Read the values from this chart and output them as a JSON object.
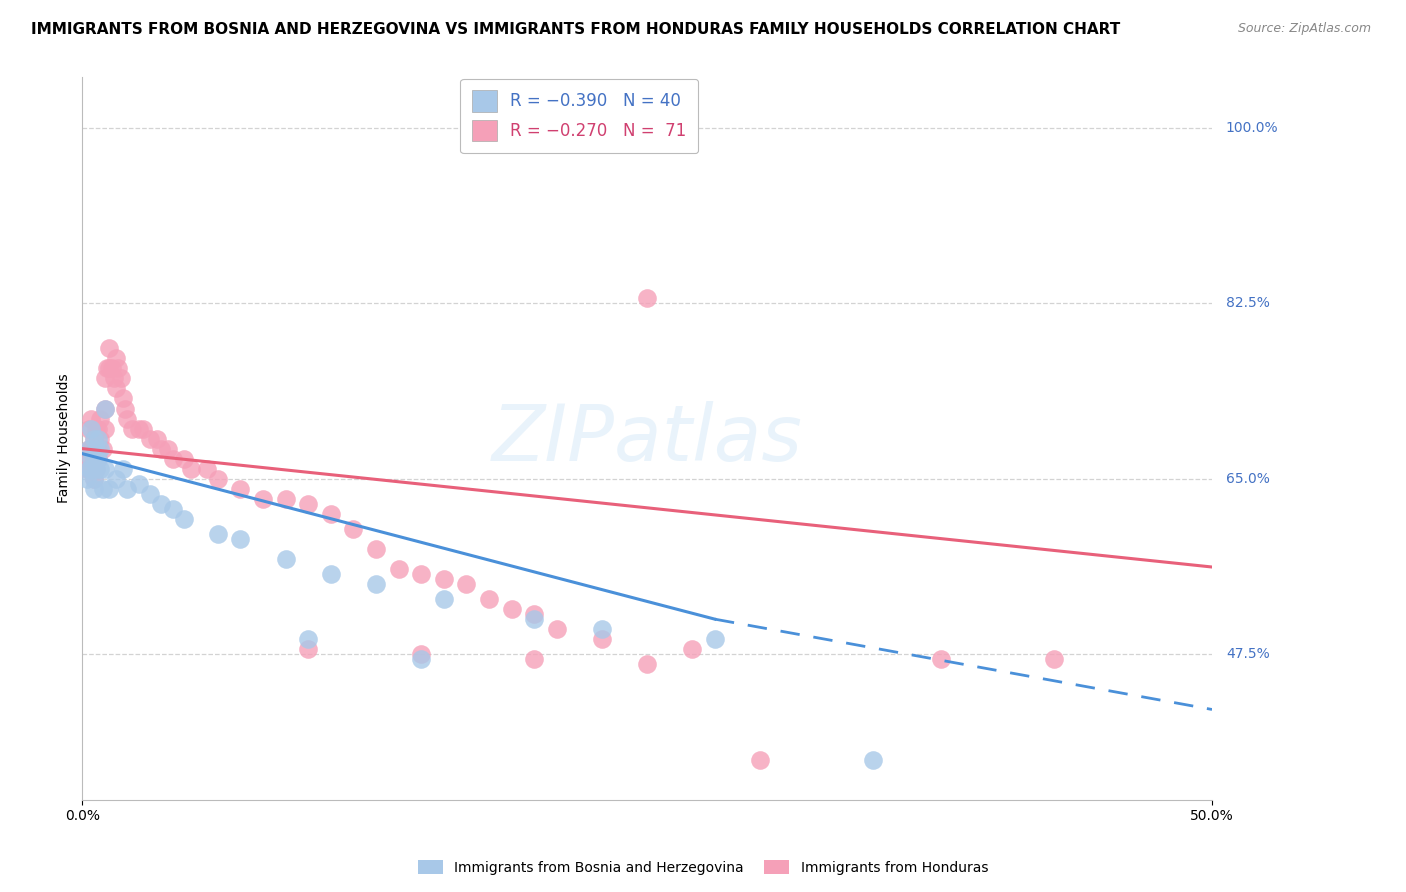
{
  "title": "IMMIGRANTS FROM BOSNIA AND HERZEGOVINA VS IMMIGRANTS FROM HONDURAS FAMILY HOUSEHOLDS CORRELATION CHART",
  "source": "Source: ZipAtlas.com",
  "ylabel": "Family Households",
  "legend_footer": [
    "Immigrants from Bosnia and Herzegovina",
    "Immigrants from Honduras"
  ],
  "xlim": [
    0.0,
    0.5
  ],
  "ylim": [
    0.33,
    1.05
  ],
  "y_tick_values": [
    1.0,
    0.825,
    0.65,
    0.475
  ],
  "y_tick_labels": [
    "100.0%",
    "82.5%",
    "65.0%",
    "47.5%"
  ],
  "x_tick_labels": [
    "0.0%",
    "50.0%"
  ],
  "scatter_bosnia": [
    [
      0.002,
      0.65
    ],
    [
      0.003,
      0.66
    ],
    [
      0.003,
      0.68
    ],
    [
      0.004,
      0.7
    ],
    [
      0.004,
      0.67
    ],
    [
      0.004,
      0.66
    ],
    [
      0.005,
      0.69
    ],
    [
      0.005,
      0.67
    ],
    [
      0.005,
      0.65
    ],
    [
      0.005,
      0.64
    ],
    [
      0.006,
      0.68
    ],
    [
      0.006,
      0.66
    ],
    [
      0.007,
      0.69
    ],
    [
      0.007,
      0.67
    ],
    [
      0.008,
      0.66
    ],
    [
      0.008,
      0.68
    ],
    [
      0.009,
      0.64
    ],
    [
      0.01,
      0.66
    ],
    [
      0.01,
      0.72
    ],
    [
      0.012,
      0.64
    ],
    [
      0.015,
      0.65
    ],
    [
      0.018,
      0.66
    ],
    [
      0.02,
      0.64
    ],
    [
      0.025,
      0.645
    ],
    [
      0.03,
      0.635
    ],
    [
      0.035,
      0.625
    ],
    [
      0.04,
      0.62
    ],
    [
      0.045,
      0.61
    ],
    [
      0.06,
      0.595
    ],
    [
      0.07,
      0.59
    ],
    [
      0.09,
      0.57
    ],
    [
      0.11,
      0.555
    ],
    [
      0.13,
      0.545
    ],
    [
      0.16,
      0.53
    ],
    [
      0.2,
      0.51
    ],
    [
      0.23,
      0.5
    ],
    [
      0.28,
      0.49
    ],
    [
      0.1,
      0.49
    ],
    [
      0.15,
      0.47
    ],
    [
      0.35,
      0.37
    ]
  ],
  "scatter_honduras": [
    [
      0.002,
      0.66
    ],
    [
      0.003,
      0.67
    ],
    [
      0.003,
      0.68
    ],
    [
      0.003,
      0.7
    ],
    [
      0.004,
      0.66
    ],
    [
      0.004,
      0.68
    ],
    [
      0.004,
      0.71
    ],
    [
      0.005,
      0.65
    ],
    [
      0.005,
      0.67
    ],
    [
      0.005,
      0.69
    ],
    [
      0.006,
      0.66
    ],
    [
      0.006,
      0.68
    ],
    [
      0.006,
      0.7
    ],
    [
      0.007,
      0.67
    ],
    [
      0.007,
      0.68
    ],
    [
      0.007,
      0.7
    ],
    [
      0.008,
      0.69
    ],
    [
      0.008,
      0.71
    ],
    [
      0.009,
      0.68
    ],
    [
      0.01,
      0.7
    ],
    [
      0.01,
      0.72
    ],
    [
      0.01,
      0.75
    ],
    [
      0.011,
      0.76
    ],
    [
      0.012,
      0.78
    ],
    [
      0.012,
      0.76
    ],
    [
      0.013,
      0.76
    ],
    [
      0.014,
      0.75
    ],
    [
      0.015,
      0.74
    ],
    [
      0.015,
      0.77
    ],
    [
      0.016,
      0.76
    ],
    [
      0.017,
      0.75
    ],
    [
      0.018,
      0.73
    ],
    [
      0.019,
      0.72
    ],
    [
      0.02,
      0.71
    ],
    [
      0.022,
      0.7
    ],
    [
      0.025,
      0.7
    ],
    [
      0.027,
      0.7
    ],
    [
      0.03,
      0.69
    ],
    [
      0.033,
      0.69
    ],
    [
      0.035,
      0.68
    ],
    [
      0.038,
      0.68
    ],
    [
      0.04,
      0.67
    ],
    [
      0.045,
      0.67
    ],
    [
      0.048,
      0.66
    ],
    [
      0.055,
      0.66
    ],
    [
      0.06,
      0.65
    ],
    [
      0.07,
      0.64
    ],
    [
      0.08,
      0.63
    ],
    [
      0.09,
      0.63
    ],
    [
      0.1,
      0.625
    ],
    [
      0.11,
      0.615
    ],
    [
      0.12,
      0.6
    ],
    [
      0.13,
      0.58
    ],
    [
      0.14,
      0.56
    ],
    [
      0.15,
      0.555
    ],
    [
      0.16,
      0.55
    ],
    [
      0.17,
      0.545
    ],
    [
      0.18,
      0.53
    ],
    [
      0.19,
      0.52
    ],
    [
      0.2,
      0.515
    ],
    [
      0.21,
      0.5
    ],
    [
      0.23,
      0.49
    ],
    [
      0.25,
      0.83
    ],
    [
      0.27,
      0.48
    ],
    [
      0.1,
      0.48
    ],
    [
      0.15,
      0.475
    ],
    [
      0.2,
      0.47
    ],
    [
      0.25,
      0.465
    ],
    [
      0.38,
      0.47
    ],
    [
      0.43,
      0.47
    ],
    [
      0.3,
      0.37
    ]
  ],
  "trend_pink_x0": 0.0,
  "trend_pink_y0": 0.68,
  "trend_pink_x1": 0.5,
  "trend_pink_y1": 0.562,
  "trend_blue_solid_x0": 0.0,
  "trend_blue_solid_y0": 0.675,
  "trend_blue_solid_x1": 0.28,
  "trend_blue_solid_y1": 0.51,
  "trend_blue_dash_x0": 0.28,
  "trend_blue_dash_y0": 0.51,
  "trend_blue_dash_x1": 0.5,
  "trend_blue_dash_y1": 0.42,
  "blue_line_color": "#4a90d9",
  "pink_line_color": "#e8607a",
  "blue_scatter_color": "#a8c8e8",
  "pink_scatter_color": "#f5a0b8",
  "right_label_color": "#4472C4",
  "grid_color": "#c8c8c8",
  "background_color": "#ffffff",
  "title_fontsize": 11,
  "axis_label_fontsize": 10,
  "tick_fontsize": 10,
  "legend_fontsize": 12
}
